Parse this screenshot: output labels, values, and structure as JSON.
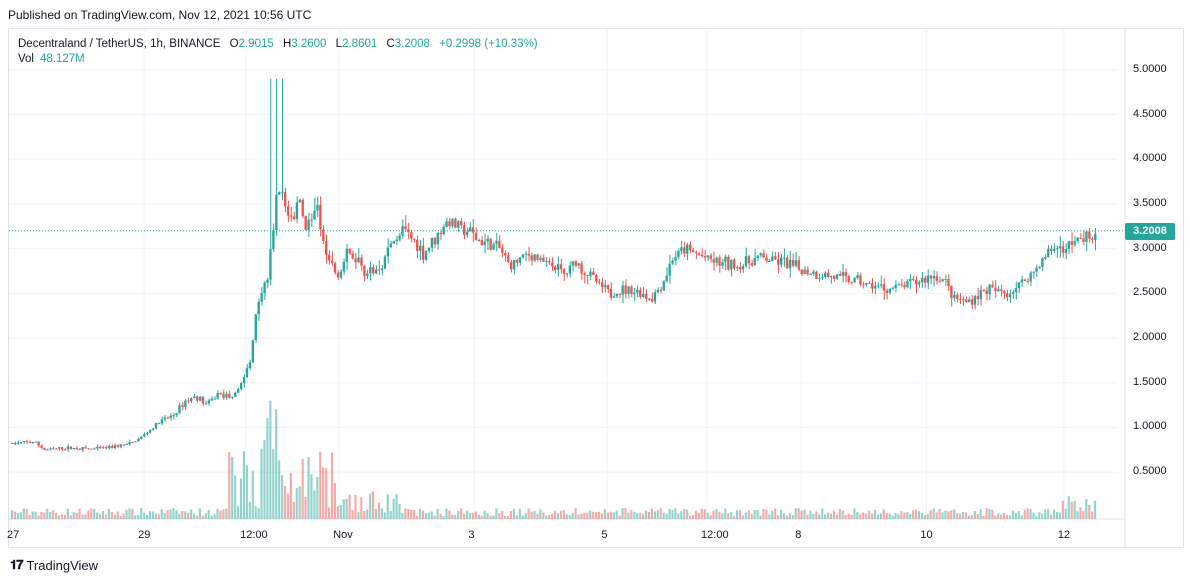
{
  "header": {
    "published": "Published on TradingView.com, Nov 12, 2021 10:56 UTC"
  },
  "legend": {
    "symbol": "Decentraland / TetherUS, 1h, BINANCE",
    "open_label": "O",
    "open": "2.9015",
    "high_label": "H",
    "high": "3.2600",
    "low_label": "L",
    "low": "2.8601",
    "close_label": "C",
    "close": "3.2008",
    "change": "+0.2998 (+10.33%)",
    "vol_label": "Vol",
    "vol": "48.127M"
  },
  "last_price_label": "3.2008",
  "footer": {
    "brand": "TradingView",
    "logo_icon": "tradingview-logo-icon"
  },
  "colors": {
    "up": "#26a69a",
    "down": "#ef5350",
    "grid": "#f0f3fa",
    "axis_text": "#131722"
  },
  "chart_data": {
    "type": "candlestick",
    "symbol": "Decentraland / TetherUS",
    "interval": "1h",
    "exchange": "BINANCE",
    "y_axis_ticks": [
      "5.0000",
      "4.5000",
      "4.0000",
      "3.5000",
      "3.0000",
      "2.5000",
      "2.0000",
      "1.5000",
      "1.0000",
      "0.5000"
    ],
    "ylim": [
      0.2,
      5.3
    ],
    "x_axis_ticks": [
      "27",
      "29",
      "12:00",
      "Nov",
      "3",
      "5",
      "12:00",
      "8",
      "10",
      "12"
    ],
    "last_price": 3.2008,
    "price_path": [
      [
        0,
        0.82
      ],
      [
        0.02,
        0.84
      ],
      [
        0.03,
        0.75
      ],
      [
        0.05,
        0.77
      ],
      [
        0.08,
        0.76
      ],
      [
        0.11,
        0.82
      ],
      [
        0.12,
        0.9
      ],
      [
        0.135,
        1.05
      ],
      [
        0.15,
        1.15
      ],
      [
        0.16,
        1.3
      ],
      [
        0.17,
        1.35
      ],
      [
        0.18,
        1.25
      ],
      [
        0.19,
        1.38
      ],
      [
        0.2,
        1.35
      ],
      [
        0.21,
        1.45
      ],
      [
        0.22,
        1.75
      ],
      [
        0.225,
        2.3
      ],
      [
        0.23,
        2.55
      ],
      [
        0.235,
        2.6
      ],
      [
        0.24,
        3.1
      ],
      [
        0.245,
        3.7
      ],
      [
        0.25,
        3.55
      ],
      [
        0.255,
        3.4
      ],
      [
        0.26,
        3.3
      ],
      [
        0.265,
        3.65
      ],
      [
        0.27,
        3.2
      ],
      [
        0.28,
        3.5
      ],
      [
        0.29,
        3.0
      ],
      [
        0.3,
        2.65
      ],
      [
        0.31,
        2.95
      ],
      [
        0.32,
        2.85
      ],
      [
        0.33,
        2.7
      ],
      [
        0.34,
        2.8
      ],
      [
        0.35,
        3.05
      ],
      [
        0.36,
        3.2
      ],
      [
        0.37,
        3.1
      ],
      [
        0.38,
        2.95
      ],
      [
        0.39,
        3.1
      ],
      [
        0.4,
        3.3
      ],
      [
        0.41,
        3.25
      ],
      [
        0.42,
        3.2
      ],
      [
        0.43,
        3.1
      ],
      [
        0.44,
        3.05
      ],
      [
        0.45,
        3.0
      ],
      [
        0.46,
        2.8
      ],
      [
        0.47,
        2.9
      ],
      [
        0.48,
        2.95
      ],
      [
        0.49,
        2.85
      ],
      [
        0.5,
        2.8
      ],
      [
        0.51,
        2.7
      ],
      [
        0.52,
        2.85
      ],
      [
        0.53,
        2.75
      ],
      [
        0.55,
        2.5
      ],
      [
        0.57,
        2.55
      ],
      [
        0.59,
        2.45
      ],
      [
        0.6,
        2.6
      ],
      [
        0.61,
        2.9
      ],
      [
        0.62,
        3.0
      ],
      [
        0.63,
        2.95
      ],
      [
        0.65,
        2.85
      ],
      [
        0.67,
        2.8
      ],
      [
        0.69,
        2.9
      ],
      [
        0.71,
        2.85
      ],
      [
        0.73,
        2.75
      ],
      [
        0.75,
        2.7
      ],
      [
        0.77,
        2.65
      ],
      [
        0.79,
        2.6
      ],
      [
        0.81,
        2.55
      ],
      [
        0.83,
        2.6
      ],
      [
        0.85,
        2.7
      ],
      [
        0.86,
        2.65
      ],
      [
        0.87,
        2.45
      ],
      [
        0.88,
        2.4
      ],
      [
        0.9,
        2.55
      ],
      [
        0.92,
        2.5
      ],
      [
        0.94,
        2.7
      ],
      [
        0.96,
        3.0
      ],
      [
        0.98,
        3.05
      ],
      [
        1.0,
        3.2
      ]
    ]
  }
}
